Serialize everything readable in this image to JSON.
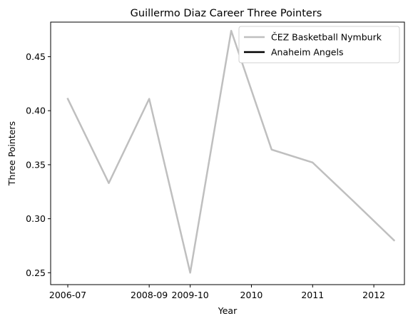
{
  "chart_data": {
    "type": "line",
    "title": "Guillermo Diaz  Career Three Pointers",
    "xlabel": "Year",
    "ylabel": "Three Pointers",
    "x_ticks": [
      "2006-07",
      "2008-09",
      "2009-10",
      "2010",
      "2011",
      "2012"
    ],
    "x_tick_positions": [
      0,
      1.33,
      2.0,
      3.0,
      4.0,
      5.0
    ],
    "xlim": [
      -0.28,
      5.5
    ],
    "ylim": [
      0.239,
      0.482
    ],
    "y_ticks": [
      0.25,
      0.3,
      0.35,
      0.4,
      0.45
    ],
    "y_tick_labels": [
      "0.25",
      "0.30",
      "0.35",
      "0.40",
      "0.45"
    ],
    "grid": false,
    "legend_position": "top-right",
    "series": [
      {
        "name": "ČEZ Basketball Nymburk",
        "color": "#bfbfbf",
        "x": [
          0,
          0.67,
          1.33,
          2.0,
          2.67,
          3.33,
          4.0,
          4.67,
          5.33
        ],
        "values": [
          0.411,
          0.333,
          0.411,
          0.25,
          0.474,
          0.364,
          0.352,
          0.316,
          0.28
        ]
      },
      {
        "name": "Anaheim Angels",
        "color": "#000000",
        "x": [],
        "values": []
      }
    ]
  }
}
